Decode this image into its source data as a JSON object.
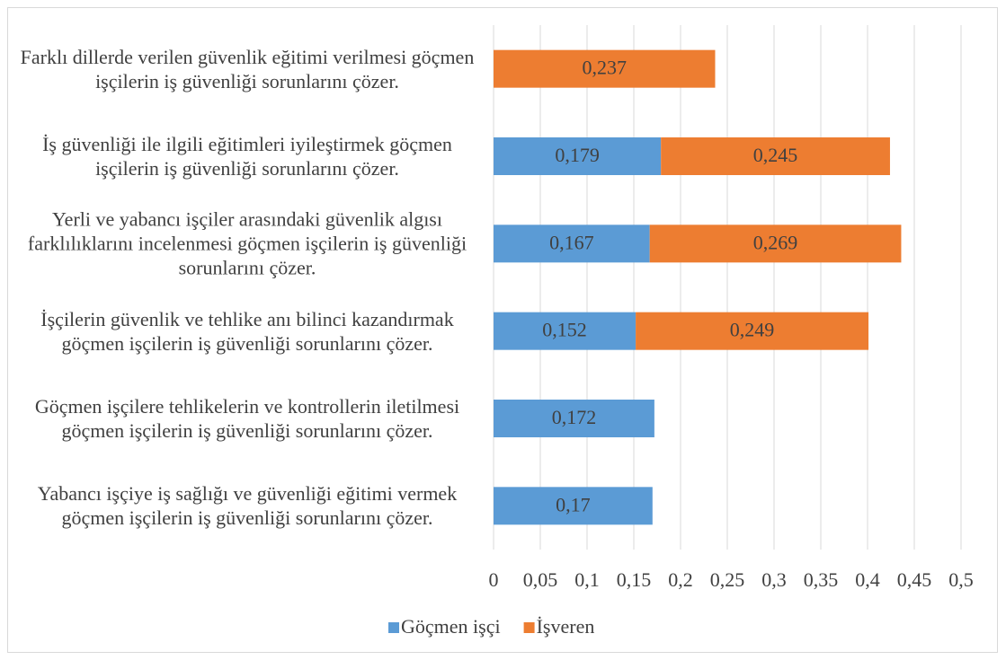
{
  "chart_data": {
    "type": "stacked-bar-horizontal",
    "categories": [
      "Farklı dillerde verilen güvenlik eğitimi verilmesi göçmen işçilerin iş güvenliği sorunlarını çözer.",
      "İş güvenliği ile ilgili eğitimleri iyileştirmek göçmen işçilerin iş güvenliği sorunlarını çözer.",
      "Yerli ve yabancı işçiler arasındaki güvenlik algısı farklılıklarını incelenmesi göçmen işçilerin iş güvenliği sorunlarını çözer.",
      "İşçilerin güvenlik ve tehlike anı bilinci kazandırmak göçmen işçilerin iş güvenliği sorunlarını çözer.",
      "Göçmen işçilere tehlikelerin ve kontrollerin iletilmesi göçmen işçilerin iş güvenliği sorunlarını çözer.",
      "Yabancı işçiye iş sağlığı ve güvenliği eğitimi vermek göçmen işçilerin iş güvenliği sorunlarını çözer."
    ],
    "series": [
      {
        "name": "Göçmen işçi",
        "color": "#5b9bd5",
        "values": [
          null,
          0.179,
          0.167,
          0.152,
          0.172,
          0.17
        ],
        "value_labels": [
          null,
          "0,179",
          "0,167",
          "0,152",
          "0,172",
          "0,17"
        ]
      },
      {
        "name": "İşveren",
        "color": "#ed7d31",
        "values": [
          0.237,
          0.245,
          0.269,
          0.249,
          null,
          null
        ],
        "value_labels": [
          "0,237",
          "0,245",
          "0,269",
          "0,249",
          null,
          null
        ]
      }
    ],
    "xlim": [
      0,
      0.5
    ],
    "xticks": [
      0,
      {
        "value": 0.05,
        "label": "0,05"
      },
      {
        "value": 0.1,
        "label": "0,1"
      },
      {
        "value": 0.15,
        "label": "0,15"
      },
      {
        "value": 0.2,
        "label": "0,2"
      },
      {
        "value": 0.25,
        "label": "0,25"
      },
      {
        "value": 0.3,
        "label": "0,3"
      },
      {
        "value": 0.35,
        "label": "0,35"
      },
      {
        "value": 0.4,
        "label": "0,4"
      },
      {
        "value": 0.45,
        "label": "0,45"
      },
      {
        "value": 0.5,
        "label": "0,5"
      }
    ],
    "grid": true,
    "legend": "bottom"
  }
}
